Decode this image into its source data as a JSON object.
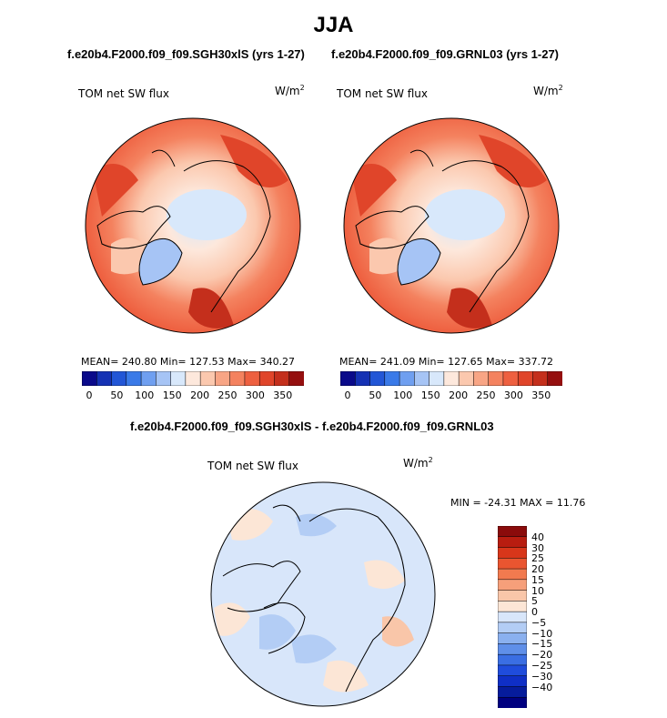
{
  "chart_data": [
    {
      "type": "heatmap",
      "projection": "north polar stereographic",
      "season": "JJA",
      "title": "f.e20b4.F2000.f09_f09.SGH30xlS (yrs 1-27)",
      "panel_label": "TOM net SW flux",
      "units_base": "W/m",
      "units_exp": "2",
      "stats": {
        "mean": "240.80",
        "min": "127.53",
        "max": "340.27"
      },
      "stats_text": "MEAN= 240.80   Min= 127.53   Max= 340.27",
      "colorbar_ticks": [
        "0",
        "50",
        "100",
        "150",
        "200",
        "250",
        "300",
        "350"
      ],
      "value_range": [
        0,
        375
      ]
    },
    {
      "type": "heatmap",
      "projection": "north polar stereographic",
      "season": "JJA",
      "title": "f.e20b4.F2000.f09_f09.GRNL03 (yrs 1-27)",
      "panel_label": "TOM net SW flux",
      "units_base": "W/m",
      "units_exp": "2",
      "stats": {
        "mean": "241.09",
        "min": "127.65",
        "max": "337.72"
      },
      "stats_text": "MEAN= 241.09   Min= 127.65   Max= 337.72",
      "colorbar_ticks": [
        "0",
        "50",
        "100",
        "150",
        "200",
        "250",
        "300",
        "350"
      ],
      "value_range": [
        0,
        375
      ]
    },
    {
      "type": "heatmap",
      "projection": "north polar stereographic",
      "title": "f.e20b4.F2000.f09_f09.SGH30xlS - f.e20b4.F2000.f09_f09.GRNL03",
      "panel_label": "TOM net SW flux",
      "units_base": "W/m",
      "units_exp": "2",
      "stats": {
        "min": "-24.31",
        "max": "11.76"
      },
      "stats_text": "MIN = -24.31 MAX =  11.76",
      "colorbar_ticks": [
        "40",
        "30",
        "25",
        "20",
        "15",
        "10",
        "5",
        "0",
        "−5",
        "−10",
        "−15",
        "−20",
        "−25",
        "−30",
        "−40"
      ]
    }
  ],
  "header": {
    "season": "JJA"
  },
  "colors": {
    "abs_scale": [
      "#0a0a8a",
      "#1532b4",
      "#2256d6",
      "#3a7ae8",
      "#6f9ff0",
      "#a6c4f5",
      "#d8e8fb",
      "#fde8dc",
      "#fbc8ae",
      "#f8a585",
      "#f4825f",
      "#ee6040",
      "#e0452a",
      "#c42f1c",
      "#950f0f"
    ],
    "diff_scale": [
      "#8a0b0b",
      "#b81d10",
      "#d8361a",
      "#ea5530",
      "#f27a4f",
      "#f69f7a",
      "#f9c6a9",
      "#fce6d6",
      "#d8e6fa",
      "#b3cdf5",
      "#8ab0ef",
      "#5f8fe9",
      "#3a6ee3",
      "#1f4cdc",
      "#0f2fc6",
      "#061c9c",
      "#000080"
    ]
  }
}
